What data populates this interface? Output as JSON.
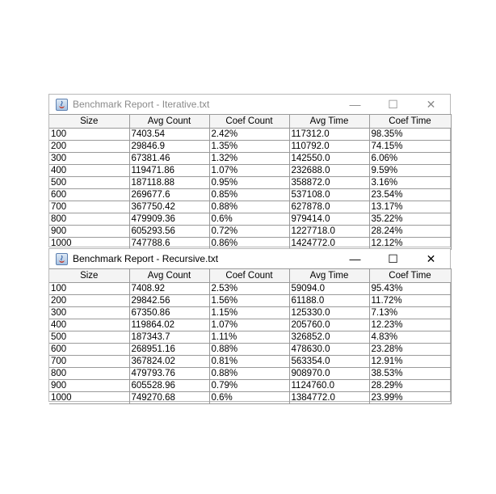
{
  "windows": [
    {
      "title": "Benchmark Report - Iterative.txt",
      "controls": {
        "minimize": "—",
        "maximize": "☐",
        "close": "✕"
      },
      "columns": [
        "Size",
        "Avg Count",
        "Coef Count",
        "Avg Time",
        "Coef Time"
      ],
      "rows": [
        [
          "100",
          "7403.54",
          "2.42%",
          "117312.0",
          "98.35%"
        ],
        [
          "200",
          "29846.9",
          "1.35%",
          "110792.0",
          "74.15%"
        ],
        [
          "300",
          "67381.46",
          "1.32%",
          "142550.0",
          "6.06%"
        ],
        [
          "400",
          "119471.86",
          "1.07%",
          "232688.0",
          "9.59%"
        ],
        [
          "500",
          "187118.88",
          "0.95%",
          "358872.0",
          "3.16%"
        ],
        [
          "600",
          "269677.6",
          "0.85%",
          "537108.0",
          "23.54%"
        ],
        [
          "700",
          "367750.42",
          "0.88%",
          "627878.0",
          "13.17%"
        ],
        [
          "800",
          "479909.36",
          "0.6%",
          "979414.0",
          "35.22%"
        ],
        [
          "900",
          "605293.56",
          "0.72%",
          "1227718.0",
          "28.24%"
        ],
        [
          "1000",
          "747788.6",
          "0.86%",
          "1424772.0",
          "12.12%"
        ]
      ]
    },
    {
      "title": "Benchmark Report - Recursive.txt",
      "controls": {
        "minimize": "—",
        "maximize": "☐",
        "close": "✕"
      },
      "columns": [
        "Size",
        "Avg Count",
        "Coef Count",
        "Avg Time",
        "Coef Time"
      ],
      "rows": [
        [
          "100",
          "7408.92",
          "2.53%",
          "59094.0",
          "95.43%"
        ],
        [
          "200",
          "29842.56",
          "1.56%",
          "61188.0",
          "11.72%"
        ],
        [
          "300",
          "67350.86",
          "1.15%",
          "125330.0",
          "7.13%"
        ],
        [
          "400",
          "119864.02",
          "1.07%",
          "205760.0",
          "12.23%"
        ],
        [
          "500",
          "187343.7",
          "1.11%",
          "326852.0",
          "4.83%"
        ],
        [
          "600",
          "268951.16",
          "0.88%",
          "478630.0",
          "23.28%"
        ],
        [
          "700",
          "367824.02",
          "0.81%",
          "563354.0",
          "12.91%"
        ],
        [
          "800",
          "479793.76",
          "0.88%",
          "908970.0",
          "38.53%"
        ],
        [
          "900",
          "605528.96",
          "0.79%",
          "1124760.0",
          "28.29%"
        ],
        [
          "1000",
          "749270.68",
          "0.6%",
          "1384772.0",
          "23.99%"
        ]
      ]
    }
  ],
  "icons": {
    "app": "java-app-icon"
  }
}
